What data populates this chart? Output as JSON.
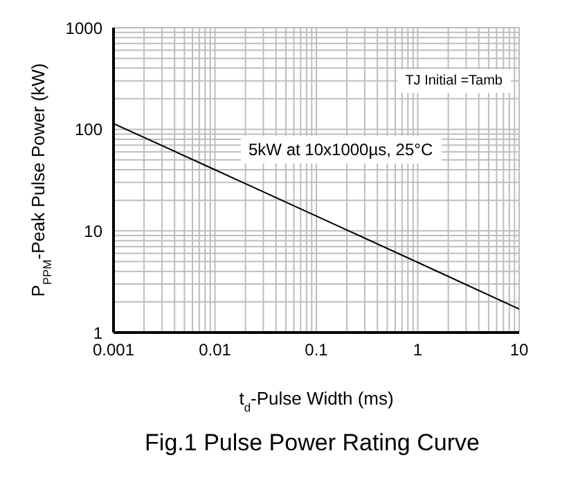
{
  "chart_data": {
    "type": "line",
    "title": "Fig.1 Pulse Power Rating Curve",
    "xlabel": "t$_{d}$-Pulse Width (ms)",
    "ylabel": "P$_{PPM}$-Peak Pulse Power (kW)",
    "annotations": [
      "TJ Initial =Tamb",
      "5kW at 10x1000µs, 25°C"
    ],
    "x": [
      0.001,
      0.01,
      0.1,
      1,
      10
    ],
    "series": [
      {
        "color": "#000000",
        "values": [
          114,
          40,
          14,
          4.9,
          1.7
        ]
      }
    ],
    "log": "xy",
    "xlim": [
      0.001,
      10
    ],
    "ylim": [
      1,
      1000
    ],
    "xticks": [
      0.001,
      {
        "value": 0.002,
        "label": null
      },
      {
        "value": 0.003,
        "label": null
      },
      {
        "value": 0.004,
        "label": null
      },
      {
        "value": 0.005,
        "label": null
      },
      {
        "value": 0.006,
        "label": null
      },
      {
        "value": 0.007,
        "label": null
      },
      {
        "value": 0.008,
        "label": null
      },
      {
        "value": 0.009,
        "label": null
      },
      0.01,
      {
        "value": 0.02,
        "label": null
      },
      {
        "value": 0.03,
        "label": null
      },
      {
        "value": 0.04,
        "label": null
      },
      {
        "value": 0.05,
        "label": null
      },
      {
        "value": 0.06,
        "label": null
      },
      {
        "value": 0.07,
        "label": null
      },
      {
        "value": 0.08,
        "label": null
      },
      {
        "value": 0.09,
        "label": null
      },
      0.1,
      {
        "value": 0.2,
        "label": null
      },
      {
        "value": 0.3,
        "label": null
      },
      {
        "value": 0.4,
        "label": null
      },
      {
        "value": 0.5,
        "label": null
      },
      {
        "value": 0.6,
        "label": null
      },
      {
        "value": 0.7,
        "label": null
      },
      {
        "value": 0.8,
        "label": null
      },
      {
        "value": 0.9,
        "label": null
      },
      1,
      {
        "value": 2,
        "label": null
      },
      {
        "value": 3,
        "label": null
      },
      {
        "value": 4,
        "label": null
      },
      {
        "value": 5,
        "label": null
      },
      {
        "value": 6,
        "label": null
      },
      {
        "value": 7,
        "label": null
      },
      {
        "value": 8,
        "label": null
      },
      {
        "value": 9,
        "label": null
      },
      10
    ],
    "yticks": [
      1,
      {
        "value": 2,
        "label": null
      },
      {
        "value": 3,
        "label": null
      },
      {
        "value": 4,
        "label": null
      },
      {
        "value": 5,
        "label": null
      },
      {
        "value": 6,
        "label": null
      },
      {
        "value": 7,
        "label": null
      },
      {
        "value": 8,
        "label": null
      },
      {
        "value": 9,
        "label": null
      },
      10,
      {
        "value": 20,
        "label": null
      },
      {
        "value": 30,
        "label": null
      },
      {
        "value": 40,
        "label": null
      },
      {
        "value": 50,
        "label": null
      },
      {
        "value": 60,
        "label": null
      },
      {
        "value": 70,
        "label": null
      },
      {
        "value": 80,
        "label": null
      },
      {
        "value": 90,
        "label": null
      },
      100,
      {
        "value": 200,
        "label": null
      },
      {
        "value": 300,
        "label": null
      },
      {
        "value": 400,
        "label": null
      },
      {
        "value": 500,
        "label": null
      },
      {
        "value": 600,
        "label": null
      },
      {
        "value": 700,
        "label": null
      },
      {
        "value": 800,
        "label": null
      },
      {
        "value": 900,
        "label": null
      },
      1000
    ],
    "grid": true
  }
}
